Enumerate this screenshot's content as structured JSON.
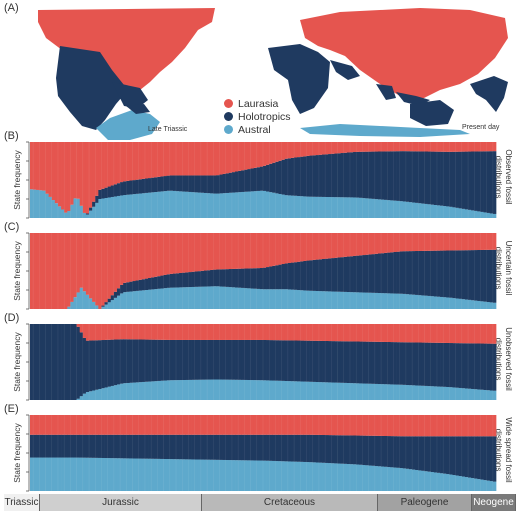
{
  "panel_labels": [
    "(A)",
    "(B)",
    "(C)",
    "(D)",
    "(E)"
  ],
  "legend": [
    {
      "name": "Laurasia",
      "color": "#e5554f"
    },
    {
      "name": "Holotropics",
      "color": "#1f3a60"
    },
    {
      "name": "Austral",
      "color": "#5ea9cc"
    }
  ],
  "map_captions": {
    "left": "Late Triassic",
    "right": "Present day"
  },
  "y_axis_label": "State frequency",
  "periods": [
    {
      "name": "Triassic",
      "color": "#f0f0f0"
    },
    {
      "name": "Jurassic",
      "color": "#cfcfcf"
    },
    {
      "name": "Cretaceous",
      "color": "#b9b9b9"
    },
    {
      "name": "Paleogene",
      "color": "#a2a2a2"
    },
    {
      "name": "Neogene",
      "color": "#7a7a7a"
    }
  ],
  "chart_data": [
    {
      "type": "area",
      "panel": "(B)",
      "side_label": [
        "Observed fossil",
        "distributions"
      ],
      "x": [
        0,
        0.03,
        0.08,
        0.1,
        0.12,
        0.15,
        0.2,
        0.3,
        0.4,
        0.5,
        0.55,
        0.6,
        0.7,
        0.8,
        0.9,
        1.0
      ],
      "series": [
        {
          "name": "Austral",
          "values": [
            0.38,
            0.36,
            0.05,
            0.3,
            0.02,
            0.25,
            0.3,
            0.36,
            0.32,
            0.36,
            0.3,
            0.28,
            0.27,
            0.22,
            0.15,
            0.05
          ]
        },
        {
          "name": "Holotropics",
          "values": [
            0.0,
            0.0,
            0.0,
            0.0,
            0.0,
            0.12,
            0.18,
            0.2,
            0.24,
            0.32,
            0.48,
            0.54,
            0.6,
            0.66,
            0.72,
            0.83
          ]
        },
        {
          "name": "Laurasia",
          "values": [
            0.62,
            0.64,
            0.95,
            0.7,
            0.98,
            0.63,
            0.52,
            0.44,
            0.44,
            0.32,
            0.22,
            0.18,
            0.13,
            0.12,
            0.13,
            0.12
          ]
        }
      ]
    },
    {
      "type": "area",
      "panel": "(C)",
      "side_label": [
        "Uncertain fossil",
        "distributions"
      ],
      "x": [
        0,
        0.08,
        0.11,
        0.15,
        0.2,
        0.3,
        0.4,
        0.5,
        0.55,
        0.6,
        0.7,
        0.8,
        0.9,
        1.0
      ],
      "series": [
        {
          "name": "Austral",
          "values": [
            0.0,
            0.0,
            0.28,
            0.0,
            0.22,
            0.28,
            0.3,
            0.26,
            0.26,
            0.24,
            0.22,
            0.2,
            0.15,
            0.08
          ]
        },
        {
          "name": "Holotropics",
          "values": [
            0.0,
            0.0,
            0.0,
            0.0,
            0.12,
            0.18,
            0.22,
            0.28,
            0.34,
            0.4,
            0.48,
            0.56,
            0.62,
            0.7
          ]
        },
        {
          "name": "Laurasia",
          "values": [
            1.0,
            1.0,
            0.72,
            1.0,
            0.66,
            0.54,
            0.48,
            0.46,
            0.4,
            0.36,
            0.3,
            0.24,
            0.23,
            0.22
          ]
        }
      ]
    },
    {
      "type": "area",
      "panel": "(D)",
      "side_label": [
        "Unobserved fossil",
        "distributions"
      ],
      "x": [
        0,
        0.1,
        0.12,
        0.2,
        0.3,
        0.4,
        0.5,
        0.6,
        0.7,
        0.8,
        0.9,
        1.0
      ],
      "series": [
        {
          "name": "Austral",
          "values": [
            0.0,
            0.0,
            0.1,
            0.22,
            0.26,
            0.27,
            0.26,
            0.24,
            0.22,
            0.2,
            0.17,
            0.12
          ]
        },
        {
          "name": "Holotropics",
          "values": [
            1.0,
            1.0,
            0.68,
            0.58,
            0.53,
            0.52,
            0.53,
            0.54,
            0.55,
            0.56,
            0.58,
            0.62
          ]
        },
        {
          "name": "Laurasia",
          "values": [
            0.0,
            0.0,
            0.22,
            0.2,
            0.21,
            0.21,
            0.21,
            0.22,
            0.23,
            0.24,
            0.25,
            0.26
          ]
        }
      ]
    },
    {
      "type": "area",
      "panel": "(E)",
      "side_label": [
        "Wide spread fossil",
        "distributions"
      ],
      "x": [
        0,
        0.1,
        0.2,
        0.3,
        0.4,
        0.5,
        0.6,
        0.7,
        0.8,
        0.9,
        1.0
      ],
      "series": [
        {
          "name": "Austral",
          "values": [
            0.44,
            0.44,
            0.43,
            0.42,
            0.41,
            0.4,
            0.38,
            0.35,
            0.3,
            0.22,
            0.12
          ]
        },
        {
          "name": "Holotropics",
          "values": [
            0.3,
            0.3,
            0.31,
            0.32,
            0.33,
            0.34,
            0.36,
            0.38,
            0.42,
            0.5,
            0.6
          ]
        },
        {
          "name": "Laurasia",
          "values": [
            0.26,
            0.26,
            0.26,
            0.26,
            0.26,
            0.26,
            0.26,
            0.27,
            0.28,
            0.28,
            0.28
          ]
        }
      ]
    }
  ]
}
